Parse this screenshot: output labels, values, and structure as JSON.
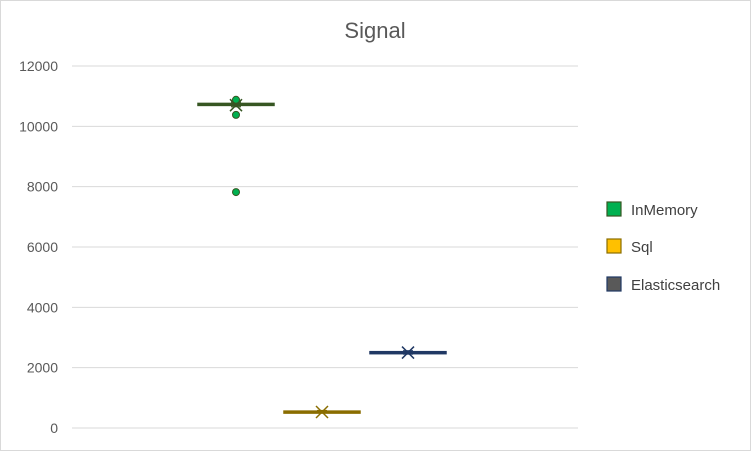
{
  "chart_data": {
    "type": "box",
    "title": "Signal",
    "xlabel": "",
    "ylabel": "",
    "ylim": [
      0,
      12000
    ],
    "yticks": [
      0,
      2000,
      4000,
      6000,
      8000,
      10000,
      12000
    ],
    "ytick_labels": [
      "0",
      "2000",
      "4000",
      "6000",
      "8000",
      "10000",
      "12000"
    ],
    "grid": true,
    "legend_position": "right",
    "series": [
      {
        "name": "InMemory",
        "color": "#00b050",
        "box_color": "#375623",
        "q1": 10700,
        "median": 10730,
        "q3": 10760,
        "whisker_low": 10650,
        "whisker_high": 10800,
        "mean": 10700,
        "outliers": [
          10880,
          10380,
          7820
        ]
      },
      {
        "name": "Sql",
        "color": "#ffc000",
        "box_color": "#8a6d00",
        "q1": 520,
        "median": 540,
        "q3": 560,
        "whisker_low": 500,
        "whisker_high": 580,
        "mean": 530,
        "outliers": []
      },
      {
        "name": "Elasticsearch",
        "color": "#595959",
        "box_color": "#203864",
        "q1": 2480,
        "median": 2510,
        "q3": 2530,
        "whisker_low": 2450,
        "whisker_high": 2560,
        "mean": 2500,
        "outliers": []
      }
    ]
  }
}
